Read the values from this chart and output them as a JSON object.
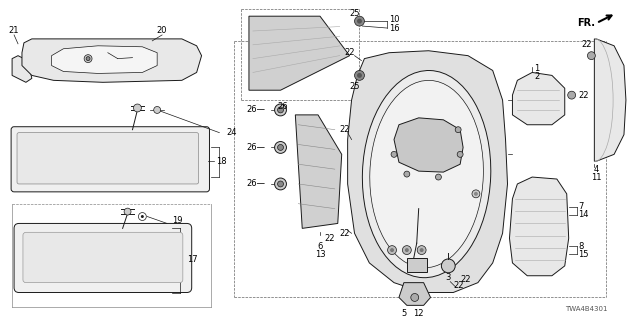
{
  "bg_color": "#ffffff",
  "part_number": "TWA4B4301",
  "line_color": "#1a1a1a",
  "label_color": "#000000",
  "fill_light": "#e8e8e8",
  "fill_mid": "#d0d0d0",
  "fill_dark": "#aaaaaa"
}
